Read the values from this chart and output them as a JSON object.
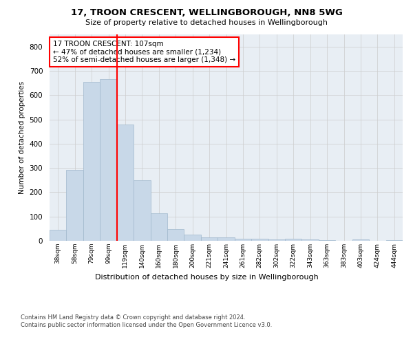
{
  "title1": "17, TROON CRESCENT, WELLINGBOROUGH, NN8 5WG",
  "title2": "Size of property relative to detached houses in Wellingborough",
  "xlabel": "Distribution of detached houses by size in Wellingborough",
  "ylabel": "Number of detached properties",
  "footer": "Contains HM Land Registry data © Crown copyright and database right 2024.\nContains public sector information licensed under the Open Government Licence v3.0.",
  "categories": [
    "38sqm",
    "58sqm",
    "79sqm",
    "99sqm",
    "119sqm",
    "140sqm",
    "160sqm",
    "180sqm",
    "200sqm",
    "221sqm",
    "241sqm",
    "261sqm",
    "282sqm",
    "302sqm",
    "322sqm",
    "343sqm",
    "363sqm",
    "383sqm",
    "403sqm",
    "424sqm",
    "444sqm"
  ],
  "values": [
    45,
    292,
    655,
    665,
    478,
    250,
    113,
    48,
    25,
    14,
    14,
    8,
    8,
    5,
    8,
    5,
    3,
    0,
    5,
    0,
    3
  ],
  "bar_color": "#c8d8e8",
  "bar_edge_color": "#a0b8cc",
  "vline_x_index": 3.5,
  "vline_color": "red",
  "annotation_text": "17 TROON CRESCENT: 107sqm\n← 47% of detached houses are smaller (1,234)\n52% of semi-detached houses are larger (1,348) →",
  "ylim": [
    0,
    850
  ],
  "yticks": [
    0,
    100,
    200,
    300,
    400,
    500,
    600,
    700,
    800
  ],
  "grid_color": "#cccccc",
  "background_color": "#e8eef4"
}
